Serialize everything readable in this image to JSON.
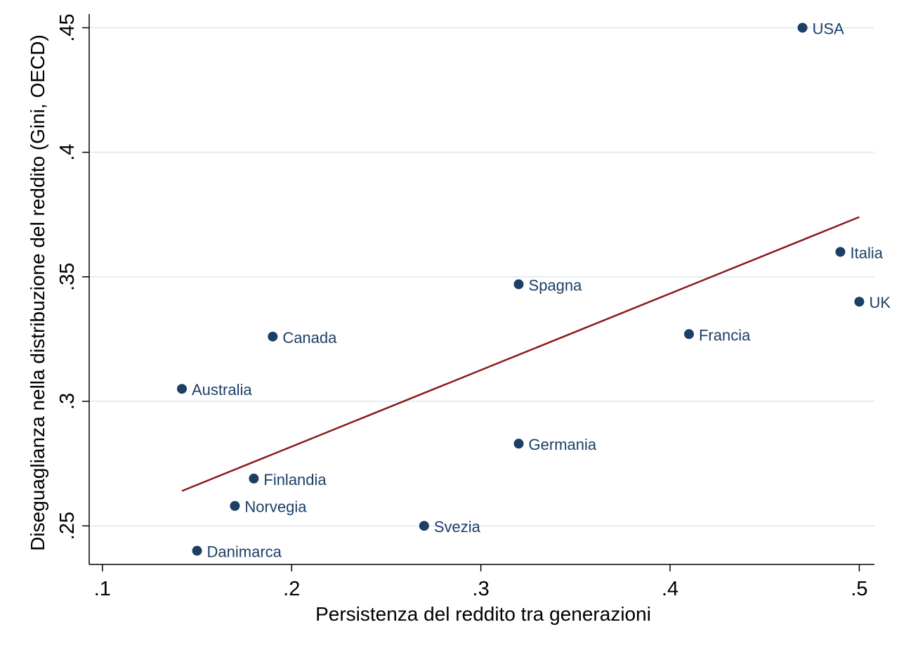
{
  "chart_data": {
    "type": "scatter",
    "title": "",
    "xlabel": "Persistenza del reddito tra generazioni",
    "ylabel": "Diseguaglianza nella distribuzione del reddito (Gini, OECD)",
    "xlim": [
      0.093,
      0.508
    ],
    "ylim": [
      0.2345,
      0.4555
    ],
    "x_ticks": [
      0.1,
      0.2,
      0.3,
      0.4,
      0.5
    ],
    "x_tick_labels": [
      ".1",
      ".2",
      ".3",
      ".4",
      ".5"
    ],
    "y_ticks": [
      0.25,
      0.3,
      0.35,
      0.4,
      0.45
    ],
    "y_tick_labels": [
      ".25",
      ".3",
      ".35",
      ".4",
      ".45"
    ],
    "grid": "horizontal",
    "points": [
      {
        "label": "USA",
        "x": 0.47,
        "y": 0.45
      },
      {
        "label": "Italia",
        "x": 0.49,
        "y": 0.36
      },
      {
        "label": "UK",
        "x": 0.5,
        "y": 0.34
      },
      {
        "label": "Spagna",
        "x": 0.32,
        "y": 0.347
      },
      {
        "label": "Francia",
        "x": 0.41,
        "y": 0.327
      },
      {
        "label": "Canada",
        "x": 0.19,
        "y": 0.326
      },
      {
        "label": "Australia",
        "x": 0.142,
        "y": 0.305
      },
      {
        "label": "Germania",
        "x": 0.32,
        "y": 0.283
      },
      {
        "label": "Finlandia",
        "x": 0.18,
        "y": 0.269
      },
      {
        "label": "Norvegia",
        "x": 0.17,
        "y": 0.258
      },
      {
        "label": "Svezia",
        "x": 0.27,
        "y": 0.25
      },
      {
        "label": "Danimarca",
        "x": 0.15,
        "y": 0.24
      }
    ],
    "fit_line": {
      "x": [
        0.142,
        0.5
      ],
      "y": [
        0.264,
        0.374
      ]
    },
    "colors": {
      "marker": "#1c3f66",
      "label": "#1c3f66",
      "fit_line": "#8b1a1a",
      "grid": "#e6ecf0",
      "axis": "#000000"
    }
  }
}
